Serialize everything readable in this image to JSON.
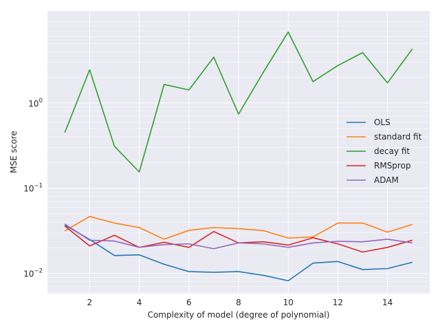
{
  "chart_data": {
    "type": "line",
    "xlabel": "Complexity of model (degree of polynomial)",
    "ylabel": "MSE score",
    "yscale": "log",
    "xlim": [
      0.3,
      15.7
    ],
    "ylim": [
      0.0058,
      12.0
    ],
    "x": [
      1,
      2,
      3,
      4,
      5,
      6,
      7,
      8,
      9,
      10,
      11,
      12,
      13,
      14,
      15
    ],
    "xticks": [
      2,
      4,
      6,
      8,
      10,
      12,
      14
    ],
    "xtick_labels": [
      "2",
      "4",
      "6",
      "8",
      "10",
      "12",
      "14"
    ],
    "yticks": [
      0.01,
      0.1,
      1
    ],
    "ytick_labels": [
      {
        "base": "10",
        "exp": "−2"
      },
      {
        "base": "10",
        "exp": "−1"
      },
      {
        "base": "10",
        "exp": "0"
      }
    ],
    "grid": true,
    "background": "#eaeaf2",
    "legend_position": "center-right",
    "series": [
      {
        "name": "OLS",
        "color": "#1f77b4",
        "values": [
          0.037,
          0.025,
          0.0162,
          0.0165,
          0.0128,
          0.0105,
          0.0103,
          0.0105,
          0.0095,
          0.0082,
          0.0132,
          0.0138,
          0.0111,
          0.0114,
          0.0135
        ]
      },
      {
        "name": "standard fit",
        "color": "#ff7f0e",
        "values": [
          0.0315,
          0.0465,
          0.039,
          0.0345,
          0.0252,
          0.032,
          0.0345,
          0.0335,
          0.0318,
          0.026,
          0.0268,
          0.039,
          0.039,
          0.0305,
          0.0375
        ]
      },
      {
        "name": "decay fit",
        "color": "#2ca02c",
        "values": [
          0.45,
          2.45,
          0.31,
          0.155,
          1.65,
          1.42,
          3.45,
          0.74,
          2.3,
          6.8,
          1.78,
          2.75,
          3.9,
          1.72,
          4.3
        ]
      },
      {
        "name": "RMSprop",
        "color": "#d62728",
        "values": [
          0.036,
          0.021,
          0.028,
          0.0202,
          0.0232,
          0.0202,
          0.031,
          0.0228,
          0.0235,
          0.0215,
          0.0262,
          0.0222,
          0.0178,
          0.0202,
          0.0245
        ]
      },
      {
        "name": "ADAM",
        "color": "#9467bd",
        "values": [
          0.038,
          0.0245,
          0.024,
          0.0202,
          0.0218,
          0.0222,
          0.0195,
          0.0228,
          0.0222,
          0.0202,
          0.0228,
          0.0238,
          0.0235,
          0.0252,
          0.0228
        ]
      }
    ]
  }
}
